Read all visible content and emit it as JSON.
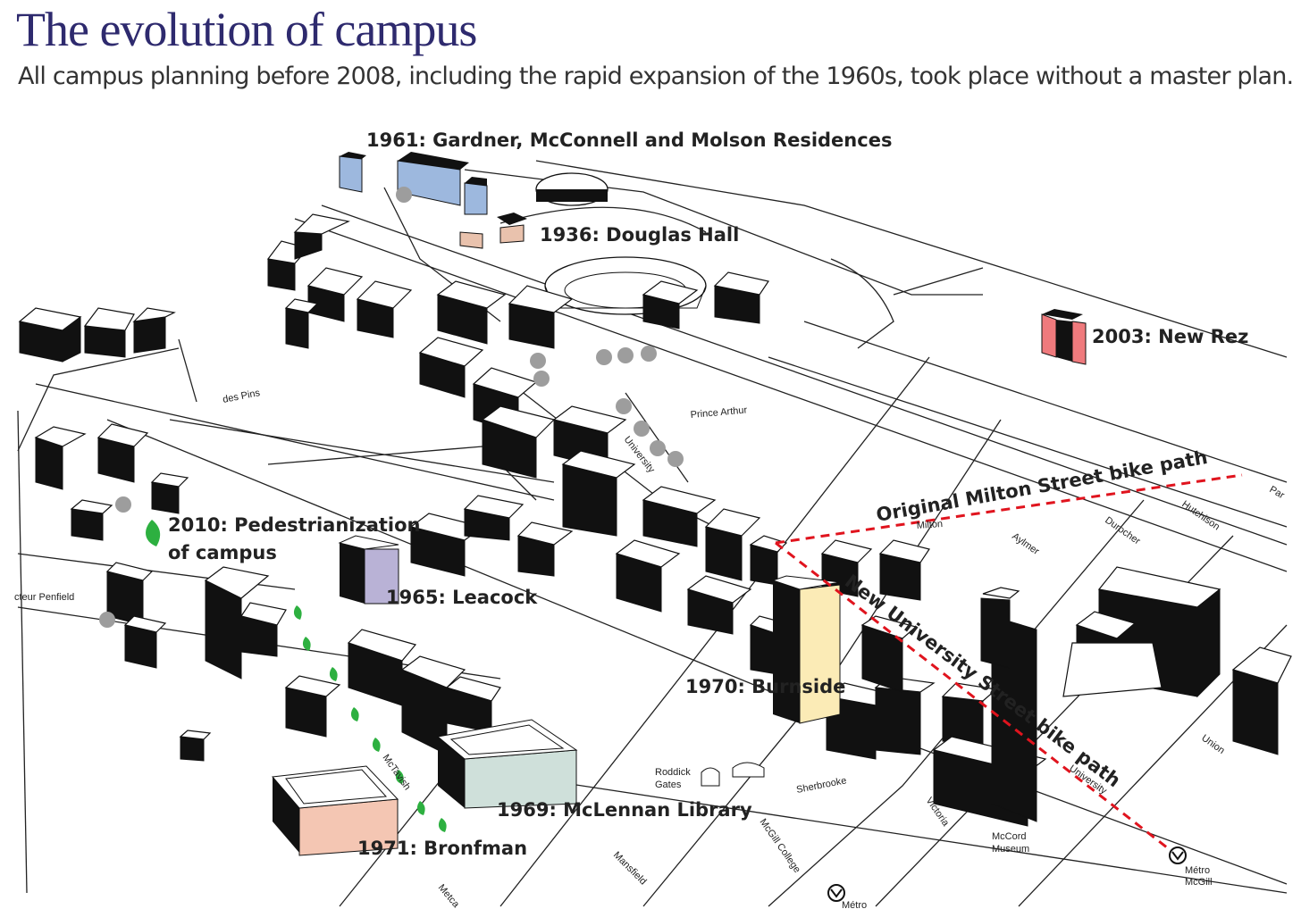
{
  "title": "The evolution of campus",
  "subtitle": "All campus planning before 2008, including the rapid expansion of the 1960s, took place without a master plan.",
  "labels": {
    "gardner": "1961: Gardner, McConnell and Molson Residences",
    "douglas": "1936: Douglas Hall",
    "newrez": "2003: New Rez",
    "pedestrian_1": "2010: Pedestrianization",
    "pedestrian_2": "of campus",
    "leacock": "1965: Leacock",
    "burnside": "1970: Burnside",
    "mclennan": "1969: McLennan Library",
    "bronfman": "1971: Bronfman",
    "milton_path": "Original Milton Street bike path",
    "university_path": "New University Street bike path"
  },
  "streets": {
    "des_pins": "des Pins",
    "prince_arthur": "Prince Arthur",
    "university_north": "University",
    "milton": "Milton",
    "aylmer": "Aylmer",
    "durocher": "Durocher",
    "hutchison": "Hutchison",
    "park": "Par",
    "penfield": "cteur Penfield",
    "mctavish": "McTavish",
    "sherbrooke": "Sherbrooke",
    "victoria": "Victoria",
    "mcgill_college": "McGill College",
    "mansfield": "Mansfield",
    "metcalfe": "Metca",
    "union": "Union",
    "university_south": "University",
    "roddick_1": "Roddick",
    "roddick_2": "Gates",
    "mccord_1": "McCord",
    "mccord_2": "Museum",
    "metro_1": "Métro",
    "metro_2": "McGill",
    "metro_3": "Métro"
  },
  "colors": {
    "title": "#2e2a6e",
    "residences": "#9db8de",
    "douglas": "#e9c2ad",
    "newrez": "#ef7a7d",
    "leacock": "#b9b2d6",
    "burnside": "#fbebb6",
    "mclennan": "#cfe0da",
    "bronfman": "#f4c6b3",
    "bike_path": "#e0141e",
    "tree": "#9d9d9d",
    "leaf": "#2db040"
  }
}
